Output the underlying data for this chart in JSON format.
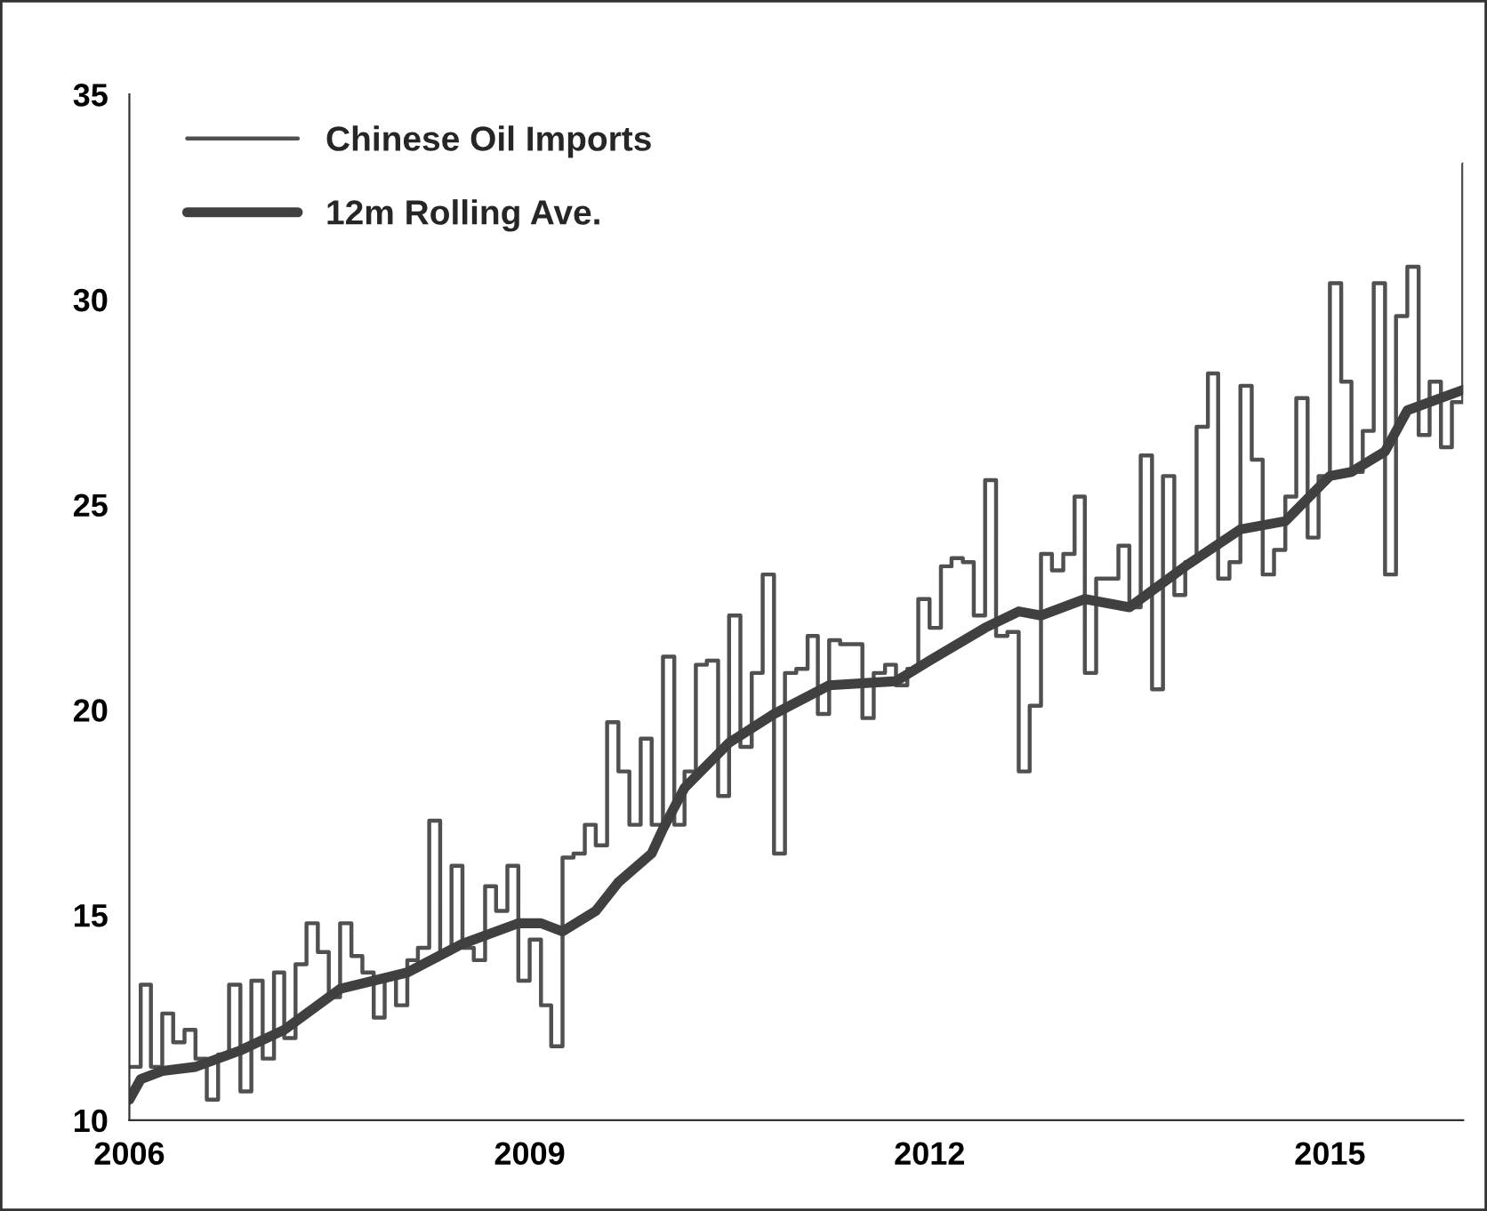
{
  "chart_data": {
    "type": "step",
    "x": [
      "2006-01",
      "2006-02",
      "2006-03",
      "2006-04",
      "2006-05",
      "2006-06",
      "2006-07",
      "2006-08",
      "2006-09",
      "2006-10",
      "2006-11",
      "2006-12",
      "2007-01",
      "2007-02",
      "2007-03",
      "2007-04",
      "2007-05",
      "2007-06",
      "2007-07",
      "2007-08",
      "2007-09",
      "2007-10",
      "2007-11",
      "2007-12",
      "2008-01",
      "2008-02",
      "2008-03",
      "2008-04",
      "2008-05",
      "2008-06",
      "2008-07",
      "2008-08",
      "2008-09",
      "2008-10",
      "2008-11",
      "2008-12",
      "2009-01",
      "2009-02",
      "2009-03",
      "2009-04",
      "2009-05",
      "2009-06",
      "2009-07",
      "2009-08",
      "2009-09",
      "2009-10",
      "2009-11",
      "2009-12",
      "2010-01",
      "2010-02",
      "2010-03",
      "2010-04",
      "2010-05",
      "2010-06",
      "2010-07",
      "2010-08",
      "2010-09",
      "2010-10",
      "2010-11",
      "2010-12",
      "2011-01",
      "2011-02",
      "2011-03",
      "2011-04",
      "2011-05",
      "2011-06",
      "2011-07",
      "2011-08",
      "2011-09",
      "2011-10",
      "2011-11",
      "2011-12",
      "2012-01",
      "2012-02",
      "2012-03",
      "2012-04",
      "2012-05",
      "2012-06",
      "2012-07",
      "2012-08",
      "2012-09",
      "2012-10",
      "2012-11",
      "2012-12",
      "2013-01",
      "2013-02",
      "2013-03",
      "2013-04",
      "2013-05",
      "2013-06",
      "2013-07",
      "2013-08",
      "2013-09",
      "2013-10",
      "2013-11",
      "2013-12",
      "2014-01",
      "2014-02",
      "2014-03",
      "2014-04",
      "2014-05",
      "2014-06",
      "2014-07",
      "2014-08",
      "2014-09",
      "2014-10",
      "2014-11",
      "2014-12",
      "2015-01",
      "2015-02",
      "2015-03",
      "2015-04",
      "2015-05",
      "2015-06",
      "2015-07",
      "2015-08",
      "2015-09",
      "2015-10",
      "2015-11",
      "2015-12",
      "2016-01"
    ],
    "series": [
      {
        "name": "Chinese Oil Imports",
        "color": "#505050",
        "values": [
          11.3,
          13.3,
          11.3,
          12.6,
          11.9,
          12.2,
          11.5,
          10.5,
          11.6,
          13.3,
          10.7,
          13.4,
          11.5,
          13.6,
          12.0,
          13.8,
          14.8,
          14.1,
          13.0,
          14.8,
          14.0,
          13.6,
          12.5,
          13.5,
          12.8,
          13.9,
          14.2,
          17.3,
          14.1,
          16.2,
          14.2,
          13.9,
          15.7,
          15.1,
          16.2,
          13.4,
          14.4,
          12.8,
          11.8,
          16.4,
          16.5,
          17.2,
          16.7,
          19.7,
          18.5,
          17.2,
          19.3,
          17.2,
          21.3,
          17.2,
          18.5,
          21.1,
          21.2,
          17.9,
          22.3,
          19.1,
          20.9,
          23.3,
          16.5,
          20.9,
          21.0,
          21.8,
          19.9,
          21.7,
          21.6,
          21.6,
          19.8,
          20.9,
          21.1,
          20.6,
          21.0,
          22.7,
          22.0,
          23.5,
          23.7,
          23.6,
          22.3,
          25.6,
          21.8,
          21.9,
          18.5,
          20.1,
          23.8,
          23.4,
          23.8,
          25.2,
          20.9,
          23.2,
          23.2,
          24.0,
          22.5,
          26.2,
          20.5,
          25.7,
          22.8,
          23.6,
          26.9,
          28.2,
          23.2,
          23.6,
          27.9,
          26.1,
          23.3,
          23.9,
          25.2,
          27.6,
          24.2,
          25.7,
          30.4,
          28.0,
          25.8,
          26.8,
          30.4,
          23.3,
          29.6,
          30.8,
          26.7,
          28.0,
          26.4,
          27.5,
          33.3
        ]
      },
      {
        "name": "12m Rolling Ave.",
        "type": "line",
        "color": "#404040",
        "x": [
          "2006-01",
          "2006-02",
          "2006-04",
          "2006-07",
          "2006-11",
          "2007-03",
          "2007-08",
          "2008-02",
          "2008-07",
          "2008-12",
          "2009-02",
          "2009-04",
          "2009-07",
          "2009-09",
          "2009-12",
          "2010-01",
          "2010-03",
          "2010-07",
          "2010-11",
          "2011-04",
          "2011-10",
          "2012-01",
          "2012-06",
          "2012-09",
          "2012-11",
          "2013-03",
          "2013-07",
          "2013-12",
          "2014-05",
          "2014-09",
          "2015-01",
          "2015-03",
          "2015-06",
          "2015-08",
          "2016-01"
        ],
        "values": [
          10.5,
          11.0,
          11.2,
          11.3,
          11.7,
          12.2,
          13.2,
          13.6,
          14.3,
          14.8,
          14.8,
          14.6,
          15.1,
          15.8,
          16.5,
          17.1,
          18.1,
          19.2,
          19.9,
          20.6,
          20.7,
          21.2,
          22.0,
          22.4,
          22.3,
          22.7,
          22.5,
          23.5,
          24.4,
          24.6,
          25.7,
          25.8,
          26.3,
          27.3,
          27.8
        ]
      }
    ],
    "xlim": [
      "2006-01",
      "2016-01"
    ],
    "xticks": [
      {
        "value": "2006-01",
        "label": "2006"
      },
      {
        "value": "2009-01",
        "label": "2009"
      },
      {
        "value": "2012-01",
        "label": "2012"
      },
      {
        "value": "2015-01",
        "label": "2015"
      }
    ],
    "ylim": [
      10,
      35
    ],
    "yticks": [
      10,
      15,
      20,
      25,
      30,
      35
    ],
    "grid": false,
    "legend": "top left"
  }
}
